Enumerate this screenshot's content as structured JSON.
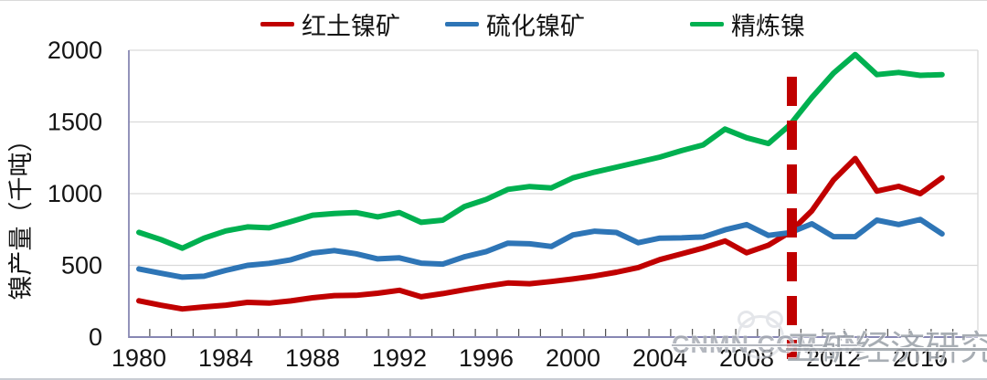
{
  "chart_data": {
    "type": "line",
    "title": "",
    "ylabel": "镍产量（千吨）",
    "xlabel": "",
    "grid": "horizontal",
    "legend_position": "top",
    "ylim": [
      0,
      2000
    ],
    "y_ticks": [
      0,
      500,
      1000,
      1500,
      2000
    ],
    "x_tick_labels": [
      "1980",
      "1984",
      "1988",
      "1992",
      "1996",
      "2000",
      "2004",
      "2008",
      "2012",
      "2016"
    ],
    "x": [
      1980,
      1981,
      1982,
      1983,
      1984,
      1985,
      1986,
      1987,
      1988,
      1989,
      1990,
      1991,
      1992,
      1993,
      1994,
      1995,
      1996,
      1997,
      1998,
      1999,
      2000,
      2001,
      2002,
      2003,
      2004,
      2005,
      2006,
      2007,
      2008,
      2009,
      2010,
      2011,
      2012,
      2013,
      2014,
      2015,
      2016,
      2017
    ],
    "series": [
      {
        "name": "红土镍矿",
        "color": "#C00000",
        "values": [
          253,
          222,
          196,
          210,
          222,
          242,
          237,
          252,
          274,
          289,
          291,
          306,
          326,
          281,
          303,
          330,
          355,
          377,
          372,
          387,
          405,
          426,
          452,
          485,
          540,
          580,
          621,
          670,
          588,
          641,
          732,
          880,
          1095,
          1245,
          1018,
          1051,
          1000,
          1110
        ]
      },
      {
        "name": "硫化镍矿",
        "color": "#2E75B6",
        "values": [
          475,
          445,
          418,
          424,
          465,
          500,
          514,
          539,
          586,
          603,
          581,
          545,
          552,
          515,
          509,
          560,
          596,
          655,
          650,
          632,
          712,
          738,
          729,
          658,
          690,
          692,
          698,
          748,
          784,
          709,
          728,
          790,
          700,
          700,
          815,
          785,
          820,
          720
        ]
      },
      {
        "name": "精炼镍",
        "color": "#00B050",
        "values": [
          730,
          680,
          620,
          690,
          740,
          768,
          762,
          805,
          850,
          862,
          868,
          838,
          868,
          800,
          815,
          910,
          960,
          1030,
          1050,
          1040,
          1110,
          1150,
          1185,
          1220,
          1255,
          1300,
          1340,
          1450,
          1390,
          1350,
          1480,
          1670,
          1840,
          1970,
          1830,
          1845,
          1825,
          1830
        ]
      }
    ],
    "annotation": {
      "type": "vline-dashed",
      "x": 2010,
      "color": "#C00000"
    }
  },
  "watermark": {
    "site": "CNMN.COM.CN",
    "org": "五矿经济研究院"
  }
}
